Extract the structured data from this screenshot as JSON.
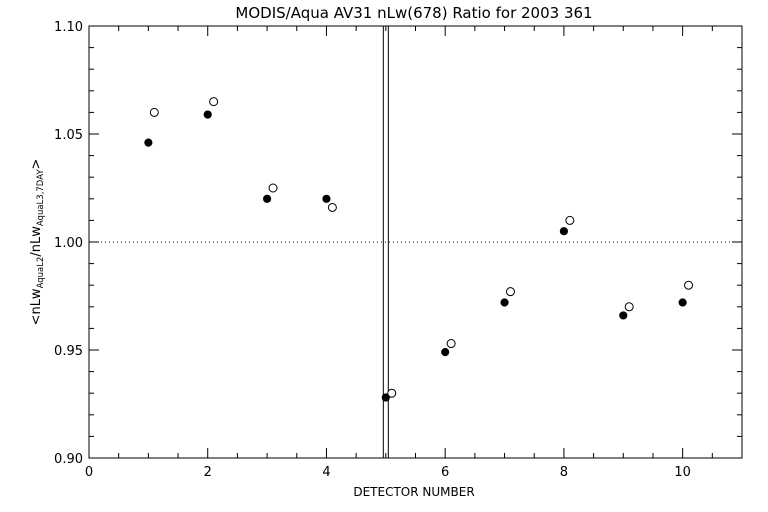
{
  "chart_data": {
    "type": "scatter",
    "title": "MODIS/Aqua AV31 nLw(678) Ratio for 2003 361",
    "xlabel": "DETECTOR NUMBER",
    "ylabel": {
      "lt": "<",
      "nlw1": "nLw",
      "sub1": "AquaL2",
      "slash": "/",
      "nlw2": "nLw",
      "sub2": "AquaL3,7DAY",
      "gt": ">"
    },
    "xlim": [
      0,
      11
    ],
    "ylim": [
      0.9,
      1.1
    ],
    "x_ticks": [
      0,
      2,
      4,
      6,
      8,
      10
    ],
    "x_tick_labels": [
      "0",
      "2",
      "4",
      "6",
      "8",
      "10"
    ],
    "y_ticks": [
      0.9,
      0.95,
      1.0,
      1.05,
      1.1
    ],
    "y_tick_labels": [
      "0.90",
      "0.95",
      "1.00",
      "1.05",
      "1.10"
    ],
    "reference_line_y": 1.0,
    "vertical_line_x": 5,
    "series": [
      {
        "marker": "filled-circle",
        "x": [
          1,
          2,
          3,
          4,
          5,
          6,
          7,
          8,
          9,
          10
        ],
        "y": [
          1.046,
          1.059,
          1.02,
          1.02,
          0.928,
          0.949,
          0.972,
          1.005,
          0.966,
          0.972
        ]
      },
      {
        "marker": "open-circle",
        "x": [
          1.1,
          2.1,
          3.1,
          4.1,
          5.1,
          6.1,
          7.1,
          8.1,
          9.1,
          10.1
        ],
        "y": [
          1.06,
          1.065,
          1.025,
          1.016,
          0.93,
          0.953,
          0.977,
          1.01,
          0.97,
          0.98
        ]
      }
    ]
  }
}
